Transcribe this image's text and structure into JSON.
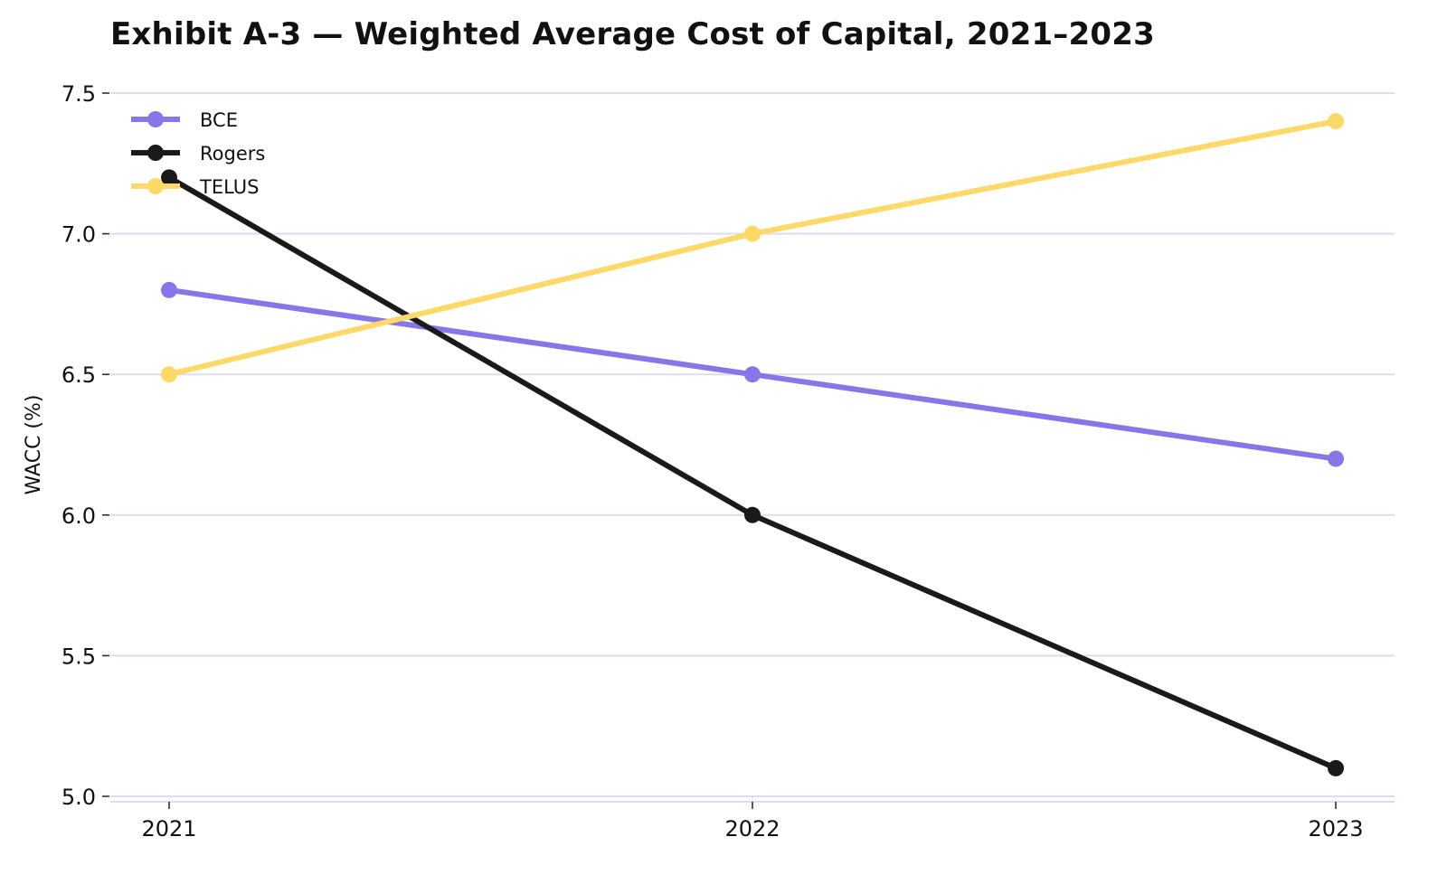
{
  "chart_data": {
    "type": "line",
    "title": "Exhibit A-3 — Weighted Average Cost of Capital, 2021–2023",
    "xlabel": "",
    "ylabel": "WACC (%)",
    "x": [
      "2021",
      "2022",
      "2023"
    ],
    "ylim": [
      5.0,
      7.5
    ],
    "yticks": [
      "5.0",
      "5.5",
      "6.0",
      "6.5",
      "7.0",
      "7.5"
    ],
    "grid": "horizontal",
    "legend": "top-left",
    "series": [
      {
        "name": "BCE",
        "color": "#8577e8",
        "values": [
          6.8,
          6.5,
          6.2
        ]
      },
      {
        "name": "Rogers",
        "color": "#1a1a1a",
        "values": [
          7.2,
          6.0,
          5.1
        ]
      },
      {
        "name": "TELUS",
        "color": "#fdd96a",
        "values": [
          6.5,
          7.0,
          7.4
        ]
      }
    ]
  }
}
